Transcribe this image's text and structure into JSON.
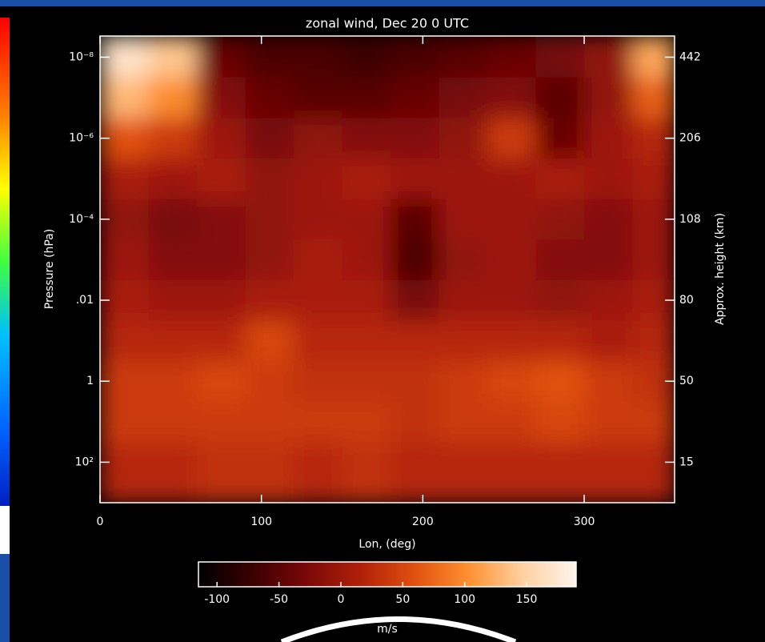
{
  "chart_data": {
    "type": "heatmap",
    "title": "zonal wind, Dec 20    0 UTC",
    "xlabel": "Lon, (deg)",
    "ylabel": "Pressure (hPa)",
    "y2label": "Approx. height (km)",
    "colorbar_label": "m/s",
    "xlim": [
      0,
      356
    ],
    "xticks": [
      0,
      100,
      200,
      300
    ],
    "ylim": [
      1000,
      3e-09
    ],
    "log_y": true,
    "yticks": [
      {
        "value": 1e-08,
        "label": "10⁻⁸"
      },
      {
        "value": 1e-06,
        "label": "10⁻⁶"
      },
      {
        "value": 0.0001,
        "label": "10⁻⁴"
      },
      {
        "value": 0.01,
        "label": ".01"
      },
      1,
      {
        "value": 100,
        "label": "10²"
      }
    ],
    "y2ticks": [
      442,
      206,
      108,
      80,
      50,
      15
    ],
    "clim": [
      -115,
      190
    ],
    "cticks": [
      -100,
      -50,
      0,
      50,
      100,
      150
    ],
    "colormap": [
      "#000000",
      "#3a0000",
      "#7a0808",
      "#b02008",
      "#e05010",
      "#ff9030",
      "#ffd0a0",
      "#fff4ec"
    ],
    "x": [
      15,
      45,
      75,
      105,
      135,
      165,
      195,
      225,
      255,
      285,
      315,
      345
    ],
    "y": [
      1e-08,
      1e-07,
      1e-06,
      1e-05,
      0.0001,
      0.001,
      0.01,
      0.1,
      1,
      10,
      100
    ],
    "z": [
      [
        170,
        140,
        -40,
        -60,
        -60,
        -70,
        -60,
        -50,
        -40,
        -30,
        -10,
        120
      ],
      [
        130,
        100,
        -20,
        -40,
        -50,
        -50,
        -40,
        -30,
        -20,
        -50,
        -10,
        70
      ],
      [
        60,
        40,
        0,
        -30,
        -10,
        -20,
        -20,
        -10,
        40,
        -40,
        0,
        20
      ],
      [
        10,
        0,
        10,
        -10,
        0,
        10,
        0,
        0,
        0,
        10,
        0,
        10
      ],
      [
        -10,
        -30,
        -20,
        -10,
        0,
        0,
        -50,
        0,
        0,
        -10,
        -20,
        0
      ],
      [
        0,
        -20,
        -20,
        -10,
        10,
        0,
        -60,
        -10,
        0,
        -20,
        -20,
        0
      ],
      [
        10,
        0,
        0,
        10,
        10,
        10,
        -30,
        0,
        0,
        -10,
        0,
        10
      ],
      [
        20,
        20,
        20,
        50,
        20,
        20,
        20,
        20,
        20,
        20,
        10,
        20
      ],
      [
        40,
        40,
        50,
        40,
        30,
        30,
        30,
        40,
        50,
        60,
        40,
        30
      ],
      [
        40,
        40,
        40,
        40,
        40,
        40,
        30,
        40,
        40,
        50,
        40,
        40
      ],
      [
        20,
        20,
        30,
        30,
        20,
        30,
        20,
        20,
        20,
        20,
        20,
        20
      ]
    ]
  }
}
